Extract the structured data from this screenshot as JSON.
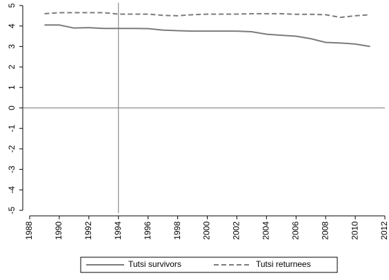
{
  "chart_data": {
    "type": "line",
    "x": [
      1989,
      1990,
      1991,
      1992,
      1993,
      1994,
      1995,
      1996,
      1997,
      1998,
      1999,
      2000,
      2001,
      2002,
      2003,
      2004,
      2005,
      2006,
      2007,
      2008,
      2009,
      2010,
      2011
    ],
    "series": [
      {
        "name": "Tutsi survivors",
        "color": "#7a7a7a",
        "dash": "solid",
        "values": [
          4.05,
          4.05,
          3.9,
          3.92,
          3.88,
          3.88,
          3.88,
          3.87,
          3.8,
          3.77,
          3.75,
          3.75,
          3.75,
          3.75,
          3.72,
          3.6,
          3.55,
          3.5,
          3.38,
          3.2,
          3.17,
          3.12,
          3.0
        ]
      },
      {
        "name": "Tutsi returnees",
        "color": "#7a7a7a",
        "dash": "dashed",
        "values": [
          4.6,
          4.65,
          4.65,
          4.65,
          4.65,
          4.58,
          4.58,
          4.58,
          4.52,
          4.5,
          4.55,
          4.58,
          4.58,
          4.58,
          4.6,
          4.6,
          4.6,
          4.57,
          4.57,
          4.55,
          4.42,
          4.5,
          4.55
        ]
      }
    ],
    "xlim": [
      1988,
      2012
    ],
    "xticks": [
      1988,
      1990,
      1992,
      1994,
      1996,
      1998,
      2000,
      2002,
      2004,
      2006,
      2008,
      2010,
      2012
    ],
    "ylim": [
      -5,
      5
    ],
    "yticks": [
      -5,
      -4,
      -3,
      -2,
      -1,
      0,
      1,
      2,
      3,
      4,
      5
    ],
    "xline": 1994,
    "yline": 0
  }
}
